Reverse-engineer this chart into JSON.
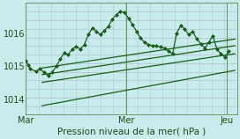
{
  "bg_color": "#c8ecec",
  "grid_color_v": "#b0d8d8",
  "grid_color_h": "#b8c8d8",
  "line_color": "#1a5c1a",
  "xlabel": "Pression niveau de la mer( hPa )",
  "xtick_labels": [
    "Mar",
    "Mer",
    "Jeu"
  ],
  "xtick_positions": [
    0.0,
    0.5,
    1.0
  ],
  "ytick_labels": [
    "1014",
    "1015",
    "1016"
  ],
  "ytick_positions": [
    1014,
    1015,
    1016
  ],
  "ylim": [
    1013.55,
    1016.9
  ],
  "xlim": [
    0.0,
    1.05
  ],
  "series_jagged": [
    [
      0.0,
      1015.18
    ],
    [
      0.01,
      1015.05
    ],
    [
      0.02,
      1014.92
    ],
    [
      0.05,
      1014.85
    ],
    [
      0.07,
      1014.92
    ],
    [
      0.09,
      1014.82
    ],
    [
      0.11,
      1014.72
    ],
    [
      0.13,
      1014.82
    ],
    [
      0.15,
      1015.0
    ],
    [
      0.17,
      1015.22
    ],
    [
      0.19,
      1015.4
    ],
    [
      0.21,
      1015.35
    ],
    [
      0.23,
      1015.52
    ],
    [
      0.25,
      1015.6
    ],
    [
      0.27,
      1015.52
    ],
    [
      0.29,
      1015.65
    ],
    [
      0.31,
      1015.95
    ],
    [
      0.33,
      1016.15
    ],
    [
      0.35,
      1016.05
    ],
    [
      0.37,
      1015.95
    ],
    [
      0.39,
      1016.08
    ],
    [
      0.41,
      1016.2
    ],
    [
      0.43,
      1016.42
    ],
    [
      0.45,
      1016.55
    ],
    [
      0.47,
      1016.65
    ],
    [
      0.49,
      1016.62
    ],
    [
      0.51,
      1016.45
    ],
    [
      0.53,
      1016.25
    ],
    [
      0.55,
      1016.05
    ],
    [
      0.57,
      1015.85
    ],
    [
      0.59,
      1015.72
    ],
    [
      0.61,
      1015.65
    ],
    [
      0.63,
      1015.62
    ],
    [
      0.65,
      1015.62
    ],
    [
      0.67,
      1015.58
    ],
    [
      0.69,
      1015.55
    ],
    [
      0.71,
      1015.45
    ],
    [
      0.73,
      1015.38
    ],
    [
      0.75,
      1016.0
    ],
    [
      0.77,
      1016.22
    ],
    [
      0.79,
      1016.12
    ],
    [
      0.81,
      1015.95
    ],
    [
      0.83,
      1016.05
    ],
    [
      0.85,
      1015.82
    ],
    [
      0.87,
      1015.68
    ],
    [
      0.89,
      1015.55
    ],
    [
      0.91,
      1015.72
    ],
    [
      0.93,
      1015.92
    ],
    [
      0.95,
      1015.52
    ],
    [
      0.97,
      1015.38
    ],
    [
      0.99,
      1015.28
    ],
    [
      1.01,
      1015.45
    ]
  ],
  "series_line1": [
    [
      0.08,
      1014.95
    ],
    [
      1.04,
      1015.82
    ]
  ],
  "series_line2": [
    [
      0.08,
      1014.75
    ],
    [
      1.04,
      1015.62
    ]
  ],
  "series_line3": [
    [
      0.08,
      1014.52
    ],
    [
      1.04,
      1015.38
    ]
  ],
  "series_line4": [
    [
      0.08,
      1013.82
    ],
    [
      1.04,
      1014.88
    ]
  ],
  "vlines_x": [
    0.0,
    0.5,
    1.0
  ],
  "n_vgrid": 18,
  "n_hgrid": 14
}
